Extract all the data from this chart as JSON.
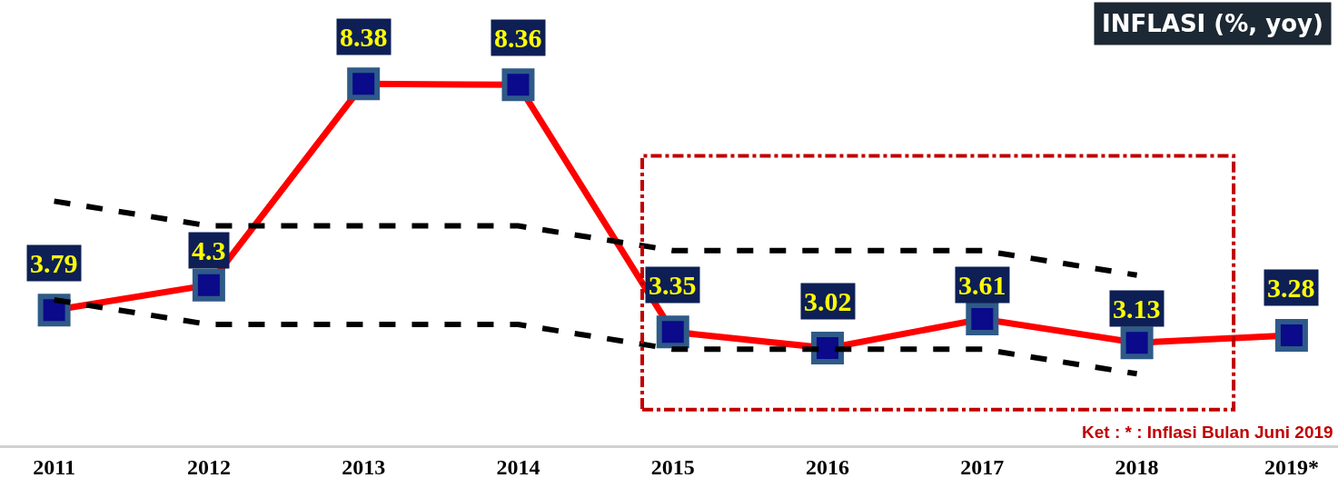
{
  "chart_data": {
    "type": "line",
    "title": "INFLASI (%, yoy)",
    "categories": [
      "2011",
      "2012",
      "2013",
      "2014",
      "2015",
      "2016",
      "2017",
      "2018",
      "2019*"
    ],
    "series": [
      {
        "color": "#000000",
        "line_style": "dashed",
        "values": [
          6.0,
          5.5,
          5.5,
          5.5,
          5.0,
          5.0,
          5.0,
          4.5,
          null
        ]
      },
      {
        "color": "#000000",
        "line_style": "dashed",
        "values": [
          4.0,
          3.5,
          3.5,
          3.5,
          3.0,
          3.0,
          3.0,
          2.5,
          null
        ]
      },
      {
        "color": "#ff0000",
        "marker": "square",
        "data_labels": true,
        "values": [
          3.79,
          4.3,
          8.38,
          8.36,
          3.35,
          3.02,
          3.61,
          3.13,
          3.28
        ]
      }
    ],
    "annotations": [
      "Ket : * : Inflasi Bulan Juni 2019"
    ],
    "tick_labels": "x"
  }
}
